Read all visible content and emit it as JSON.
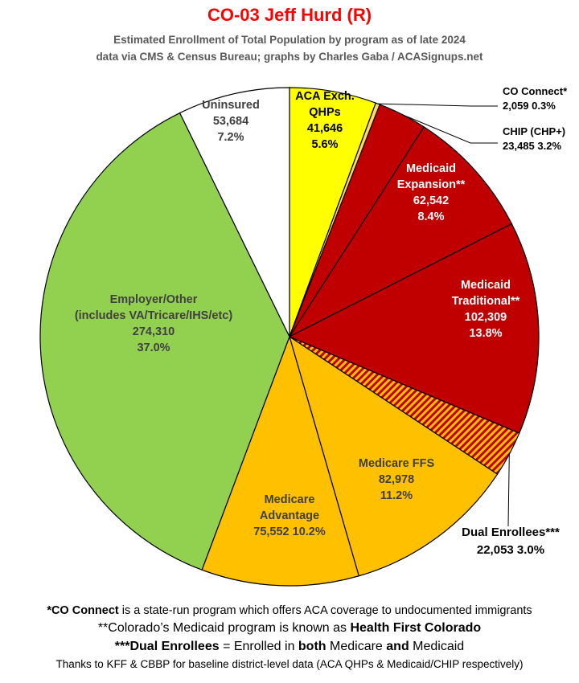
{
  "title": "CO-03 Jeff Hurd (R)",
  "subtitle_lines": [
    "Estimated Enrollment of Total Population by program as of late 2024",
    "data via CMS & Census Bureau; graphs by Charles Gaba / ACASignups.net"
  ],
  "chart_data": {
    "type": "pie",
    "title": "CO-03 Jeff Hurd (R)",
    "start_angle_deg": 0,
    "direction": "clockwise",
    "slices": [
      {
        "name": "ACA Exch. QHPs",
        "label_lines": [
          "ACA Exch.",
          "QHPs"
        ],
        "value": 41646,
        "value_label": "41,646",
        "percent": 5.6,
        "percent_label": "5.6%",
        "color": "#ffff00",
        "text_color": "#000000"
      },
      {
        "name": "CO Connect*",
        "label_lines": [
          "CO Connect*"
        ],
        "value": 2059,
        "value_label": "2,059",
        "percent": 0.3,
        "percent_label": "0.3%",
        "color": "#ffd966",
        "text_color": "#000000",
        "callout": true
      },
      {
        "name": "CHIP (CHP+)",
        "label_lines": [
          "CHIP (CHP+)"
        ],
        "value": 23485,
        "value_label": "23,485",
        "percent": 3.2,
        "percent_label": "3.2%",
        "color": "#c00000",
        "text_color": "#000000",
        "callout": true
      },
      {
        "name": "Medicaid Expansion**",
        "label_lines": [
          "Medicaid",
          "Expansion**"
        ],
        "value": 62542,
        "value_label": "62,542",
        "percent": 8.4,
        "percent_label": "8.4%",
        "color": "#c00000",
        "text_color": "#ffffff"
      },
      {
        "name": "Medicaid Traditional**",
        "label_lines": [
          "Medicaid",
          "Traditional**"
        ],
        "value": 102309,
        "value_label": "102,309",
        "percent": 13.8,
        "percent_label": "13.8%",
        "color": "#c00000",
        "text_color": "#ffffff"
      },
      {
        "name": "Dual Enrollees***",
        "label_lines": [
          "Dual Enrollees***"
        ],
        "value": 22053,
        "value_label": "22,053",
        "percent": 3.0,
        "percent_label": "3.0%",
        "color": "#ffc000",
        "stripe_color": "#c00000",
        "pattern": "hatched",
        "text_color": "#000000",
        "callout": true
      },
      {
        "name": "Medicare FFS",
        "label_lines": [
          "Medicare FFS"
        ],
        "value": 82978,
        "value_label": "82,978",
        "percent": 11.2,
        "percent_label": "11.2%",
        "color": "#ffc000",
        "text_color": "#404040"
      },
      {
        "name": "Medicare Advantage",
        "label_lines": [
          "Medicare",
          "Advantage"
        ],
        "value": 75552,
        "value_label": "75,552",
        "percent": 10.2,
        "percent_label": "10.2%",
        "color": "#ffc000",
        "text_color": "#404040",
        "inline_value_percent": true
      },
      {
        "name": "Employer/Other (includes VA/Tricare/IHS/etc)",
        "label_lines": [
          "Employer/Other",
          "(includes VA/Tricare/IHS/etc)"
        ],
        "value": 274310,
        "value_label": "274,310",
        "percent": 37.0,
        "percent_label": "37.0%",
        "color": "#92d050",
        "text_color": "#404040"
      },
      {
        "name": "Uninsured",
        "label_lines": [
          "Uninsured"
        ],
        "value": 53684,
        "value_label": "53,684",
        "percent": 7.2,
        "percent_label": "7.2%",
        "color": "#ffffff",
        "text_color": "#404040"
      }
    ]
  },
  "footnotes": [
    {
      "bold": "*CO Connect",
      "rest": " is a state-run program which offers ACA coverage to undocumented immigrants"
    },
    {
      "pre": "**Colorado’s Medicaid program is known as ",
      "bold": "Health First Colorado"
    },
    {
      "bold": "***Dual Enrollees",
      "mid": " = Enrolled in ",
      "bold2": "both",
      "mid2": " Medicare ",
      "bold3": "and",
      "end": " Medicaid"
    },
    {
      "rest": "Thanks to KFF & CBBP for baseline district-level data (ACA QHPs & Medicaid/CHIP respectively)"
    }
  ]
}
